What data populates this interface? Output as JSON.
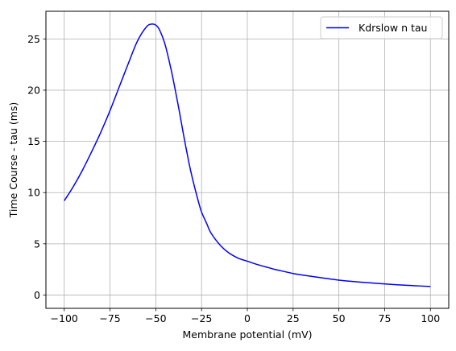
{
  "chart_data": {
    "type": "line",
    "title": "",
    "xlabel": "Membrane potential (mV)",
    "ylabel": "Time Course - tau (ms)",
    "xlim": [
      -110,
      110
    ],
    "ylim": [
      -1.3,
      27.7
    ],
    "xticks": [
      -100,
      -75,
      -50,
      -25,
      0,
      25,
      50,
      75,
      100
    ],
    "xtick_labels": [
      "−100",
      "−75",
      "−50",
      "−25",
      "0",
      "25",
      "50",
      "75",
      "100"
    ],
    "yticks": [
      0,
      5,
      10,
      15,
      20,
      25
    ],
    "ytick_labels": [
      "0",
      "5",
      "10",
      "15",
      "20",
      "25"
    ],
    "grid": true,
    "legend_position": "upper right",
    "series": [
      {
        "name": "Kdrslow n tau",
        "color": "#0000ff",
        "x": [
          -100,
          -95,
          -90,
          -85,
          -80,
          -75,
          -70,
          -65,
          -60,
          -55,
          -52,
          -50,
          -48,
          -45,
          -42,
          -40,
          -37,
          -35,
          -32,
          -30,
          -27,
          -25,
          -22,
          -20,
          -15,
          -10,
          -5,
          0,
          5,
          10,
          15,
          20,
          25,
          30,
          40,
          50,
          60,
          70,
          80,
          90,
          100
        ],
        "y": [
          9.2,
          10.6,
          12.2,
          14.0,
          15.9,
          18.0,
          20.3,
          22.6,
          24.8,
          26.2,
          26.45,
          26.35,
          25.9,
          24.5,
          22.3,
          20.6,
          17.8,
          15.8,
          13.0,
          11.4,
          9.3,
          8.1,
          6.9,
          6.1,
          4.9,
          4.1,
          3.6,
          3.3,
          3.0,
          2.75,
          2.5,
          2.3,
          2.1,
          1.95,
          1.7,
          1.45,
          1.28,
          1.15,
          1.02,
          0.92,
          0.83
        ]
      }
    ]
  }
}
